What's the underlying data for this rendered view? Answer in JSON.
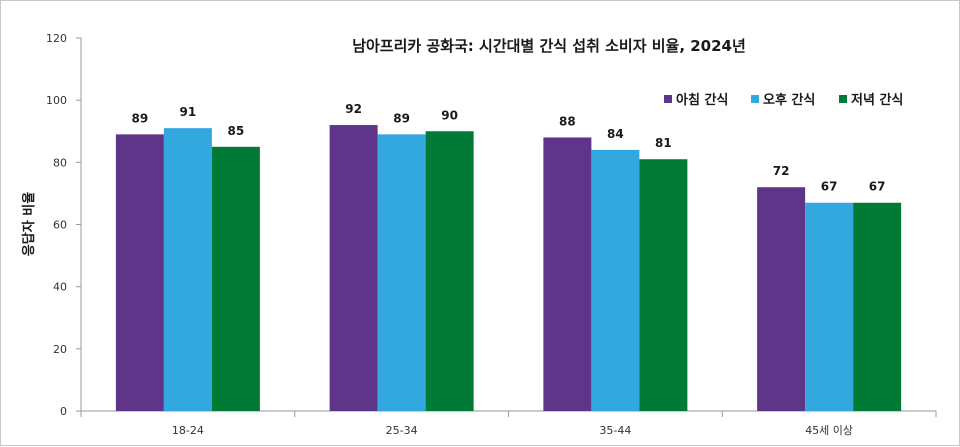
{
  "chart_data": {
    "type": "bar",
    "title": "남아프리카 공화국: 시간대별 간식 섭취 소비자 비율, 2024년",
    "ylabel": "응답자 비율",
    "xlabel": "",
    "ylim": [
      0,
      120
    ],
    "yticks": [
      "0",
      "20",
      "40",
      "60",
      "80",
      "100",
      "120"
    ],
    "grid": false,
    "legend_position": "top-right",
    "categories": [
      "18-24",
      "25-34",
      "35-44",
      "45세 이상"
    ],
    "series": [
      {
        "name": "아침 간식",
        "color": "#5e3589",
        "values": [
          89,
          92,
          88,
          72
        ]
      },
      {
        "name": "오후 간식",
        "color": "#33a8df",
        "values": [
          91,
          89,
          84,
          67
        ]
      },
      {
        "name": "저녁 간식",
        "color": "#017a35",
        "values": [
          85,
          90,
          81,
          67
        ]
      }
    ]
  }
}
